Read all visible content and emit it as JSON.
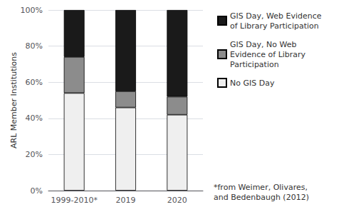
{
  "chart_data": {
    "type": "bar",
    "stacked": true,
    "categories": [
      "1999-2010*",
      "2019",
      "2020"
    ],
    "series": [
      {
        "name": "No GIS Day",
        "color": "#efefef",
        "values": [
          54,
          46,
          42
        ]
      },
      {
        "name": "GIS Day, No Web\nEvidence of Library\nParticipation",
        "color": "#8c8c8c",
        "values": [
          20,
          9,
          10
        ]
      },
      {
        "name": "GIS Day, Web Evidence\nof Library Participation",
        "color": "#1a1a1a",
        "values": [
          26,
          45,
          48
        ]
      }
    ],
    "ylabel": "ARL Member Institutions",
    "ylim": [
      0,
      100
    ],
    "yticks": [
      {
        "value": 0,
        "label": "0%"
      },
      {
        "value": 20,
        "label": "20%"
      },
      {
        "value": 40,
        "label": "40%"
      },
      {
        "value": 60,
        "label": "60%"
      },
      {
        "value": 80,
        "label": "80%"
      },
      {
        "value": 100,
        "label": "100%"
      }
    ],
    "grid": true,
    "legend": "right",
    "annotations": [
      "*from Weimer, Olivares,\nand Bedenbaugh (2012)"
    ]
  }
}
